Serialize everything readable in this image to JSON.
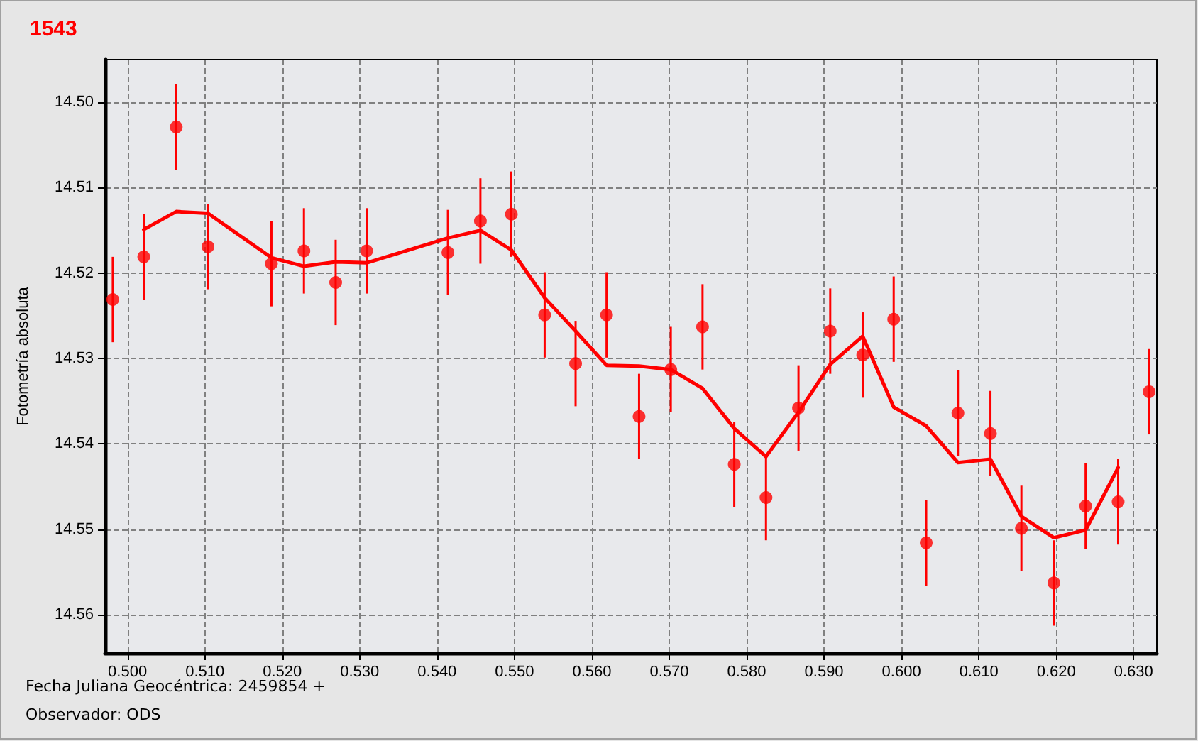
{
  "chart_data": {
    "type": "scatter",
    "title": "1543",
    "xlabel": "Fecha Juliana Geocéntrica: 2459854 +",
    "ylabel": "Fotometría absoluta",
    "annotations": [
      "Observador: ODS"
    ],
    "xlim": [
      0.4971,
      0.633
    ],
    "ylim": [
      14.5645,
      14.495
    ],
    "xticks": [
      {
        "value": 0.5,
        "label": "0.500"
      },
      {
        "value": 0.51,
        "label": "0.510"
      },
      {
        "value": 0.52,
        "label": "0.520"
      },
      {
        "value": 0.53,
        "label": "0.530"
      },
      {
        "value": 0.54,
        "label": "0.540"
      },
      {
        "value": 0.55,
        "label": "0.550"
      },
      {
        "value": 0.56,
        "label": "0.560"
      },
      {
        "value": 0.57,
        "label": "0.570"
      },
      {
        "value": 0.58,
        "label": "0.580"
      },
      {
        "value": 0.59,
        "label": "0.590"
      },
      {
        "value": 0.6,
        "label": "0.600"
      },
      {
        "value": 0.61,
        "label": "0.610"
      },
      {
        "value": 0.62,
        "label": "0.620"
      },
      {
        "value": 0.63,
        "label": "0.630"
      }
    ],
    "yticks": [
      {
        "value": 14.5,
        "label": "14.50"
      },
      14.51,
      14.52,
      {
        "value": 14.53,
        "label": "14.53"
      },
      14.54,
      14.55,
      14.56
    ],
    "grid": true,
    "line_style": "dashed",
    "series": [
      {
        "color": "#ff0000",
        "marker": "circle",
        "x": [
          0.4981,
          0.5021,
          0.5063,
          0.5104,
          0.5186,
          0.5228,
          0.5269,
          0.5309,
          0.5414,
          0.5456,
          0.5496,
          0.5539,
          0.5579,
          0.5619,
          0.5661,
          0.5702,
          0.5743,
          0.5784,
          0.5825,
          0.5867,
          0.5908,
          0.595,
          0.599,
          0.6032,
          0.6073,
          0.6115,
          0.6155,
          0.6197,
          0.6238,
          0.628,
          0.632
        ],
        "values": [
          14.5231,
          14.5181,
          14.5029,
          14.5169,
          14.5189,
          14.5174,
          14.5211,
          14.5174,
          14.5176,
          14.5139,
          14.5131,
          14.5249,
          14.5306,
          14.5249,
          14.5368,
          14.5313,
          14.5263,
          14.5424,
          14.5463,
          14.5358,
          14.5268,
          14.5296,
          14.5254,
          14.5516,
          14.5364,
          14.5388,
          14.5499,
          14.5563,
          14.5473,
          14.5468,
          14.5339
        ],
        "errors": [
          0.005,
          0.005,
          0.005,
          0.005,
          0.005,
          0.005,
          0.005,
          0.005,
          0.005,
          0.005,
          0.005,
          0.005,
          0.005,
          0.005,
          0.005,
          0.005,
          0.005,
          0.005,
          0.005,
          0.005,
          0.005,
          0.005,
          0.005,
          0.005,
          0.005,
          0.005,
          0.005,
          0.005,
          0.005,
          0.005,
          0.005
        ]
      },
      {
        "type": "line",
        "color": "#ff0000",
        "marker": "none",
        "line_style": "solid",
        "x": [
          0.5021,
          0.5063,
          0.5104,
          0.5186,
          0.5228,
          0.5269,
          0.5309,
          0.5414,
          0.5456,
          0.5496,
          0.5539,
          0.5579,
          0.5619,
          0.5661,
          0.5702,
          0.5743,
          0.5784,
          0.5825,
          0.5867,
          0.5908,
          0.595,
          0.599,
          0.6032,
          0.6073,
          0.6115,
          0.6155,
          0.6197,
          0.6238,
          0.628
        ],
        "values": [
          14.5149,
          14.5128,
          14.513,
          14.5182,
          14.5192,
          14.5187,
          14.5188,
          14.5159,
          14.515,
          14.5173,
          14.5229,
          14.5268,
          14.5308,
          14.5309,
          14.5313,
          14.5335,
          14.5382,
          14.5415,
          14.5363,
          14.5307,
          14.5274,
          14.5357,
          14.5379,
          14.5422,
          14.5418,
          14.5485,
          14.551,
          14.5501,
          14.5428
        ]
      }
    ]
  }
}
